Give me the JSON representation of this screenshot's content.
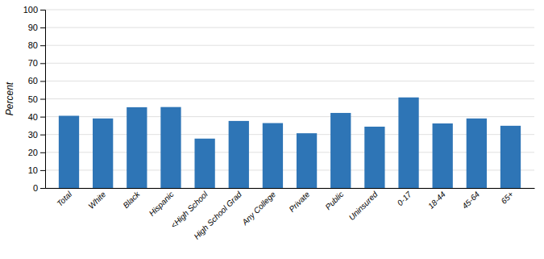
{
  "chart_data": {
    "type": "bar",
    "categories": [
      "Total",
      "White",
      "Black",
      "Hispanic",
      "<High School",
      "High School Grad",
      "Any College",
      "Private",
      "Public",
      "Uninsured",
      "0-17",
      "18-44",
      "45-64",
      "65+"
    ],
    "values": [
      40.5,
      39.0,
      45.3,
      45.4,
      27.7,
      37.6,
      36.4,
      30.7,
      42.1,
      34.4,
      50.8,
      36.2,
      39.0,
      34.9
    ],
    "color": "#2E75B6",
    "ylabel": "Percent",
    "ylim": [
      0,
      100
    ],
    "yticks": [
      0,
      10,
      20,
      30,
      40,
      50,
      60,
      70,
      80,
      90,
      100
    ],
    "grid": true
  }
}
